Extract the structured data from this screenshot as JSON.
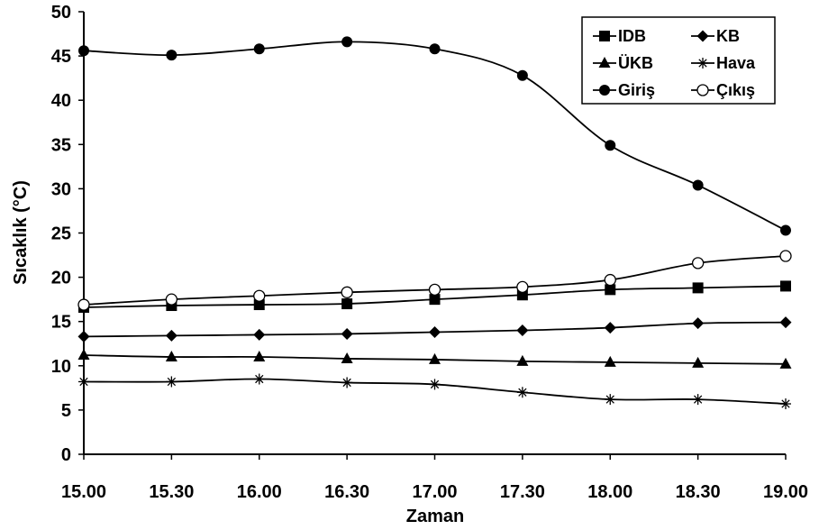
{
  "chart_data": {
    "type": "line",
    "title": "",
    "xlabel": "Zaman",
    "ylabel": "Sıcaklık (°C)",
    "categories": [
      "15.00",
      "15.30",
      "16.00",
      "16.30",
      "17.00",
      "17.30",
      "18.00",
      "18.30",
      "19.00"
    ],
    "ylim": [
      0,
      50
    ],
    "yticks": [
      "0",
      "5",
      "10",
      "15",
      "20",
      "25",
      "30",
      "35",
      "40",
      "45",
      "50"
    ],
    "grid": false,
    "legend_position": "top-right",
    "series": [
      {
        "name": "IDB",
        "marker": "square",
        "values": [
          16.6,
          16.8,
          16.9,
          17.0,
          17.5,
          18.0,
          18.6,
          18.8,
          19.0
        ]
      },
      {
        "name": "KB",
        "marker": "diamond",
        "values": [
          13.3,
          13.4,
          13.5,
          13.6,
          13.8,
          14.0,
          14.3,
          14.8,
          14.9
        ]
      },
      {
        "name": "ÜKB",
        "marker": "triangle",
        "values": [
          11.2,
          11.0,
          11.0,
          10.8,
          10.7,
          10.5,
          10.4,
          10.3,
          10.2
        ]
      },
      {
        "name": "Hava",
        "marker": "asterisk",
        "values": [
          8.2,
          8.2,
          8.5,
          8.1,
          7.9,
          7.0,
          6.2,
          6.2,
          5.7
        ]
      },
      {
        "name": "Giriş",
        "marker": "filled-circle",
        "values": [
          45.6,
          45.1,
          45.8,
          46.6,
          45.8,
          42.8,
          34.9,
          30.4,
          25.3
        ]
      },
      {
        "name": "Çıkış",
        "marker": "open-circle",
        "values": [
          16.9,
          17.5,
          17.9,
          18.3,
          18.6,
          18.9,
          19.7,
          21.6,
          22.4
        ]
      }
    ]
  }
}
